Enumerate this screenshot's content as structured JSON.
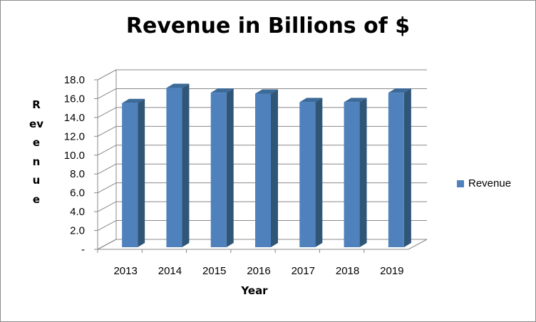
{
  "chart_data": {
    "type": "bar",
    "title": "Revenue in Billions of $",
    "xlabel": "Year",
    "ylabel": "Revenue",
    "categories": [
      "2013",
      "2014",
      "2015",
      "2016",
      "2017",
      "2018",
      "2019"
    ],
    "series": [
      {
        "name": "Revenue",
        "values": [
          15.3,
          16.9,
          16.4,
          16.3,
          15.4,
          15.4,
          16.4
        ]
      }
    ],
    "ylim": [
      0,
      18
    ],
    "yticks": [
      "-",
      "2.0",
      "4.0",
      "6.0",
      "8.0",
      "10.0",
      "12.0",
      "14.0",
      "16.0",
      "18.0"
    ],
    "grid": true,
    "legend_position": "right",
    "colors": {
      "front": "#4f81bd",
      "side": "#2f5577",
      "top": "#3c6a99",
      "grid": "#888888"
    }
  }
}
